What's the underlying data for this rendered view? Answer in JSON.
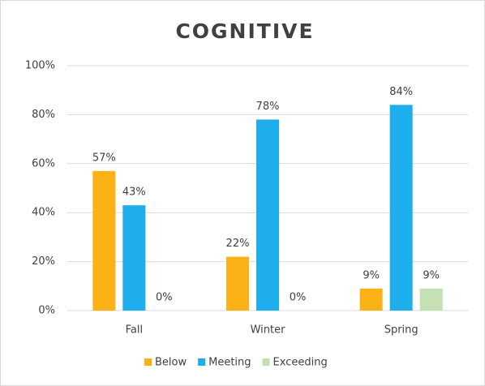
{
  "chart_data": {
    "type": "bar",
    "title": "COGNITIVE",
    "categories": [
      "Fall",
      "Winter",
      "Spring"
    ],
    "series": [
      {
        "name": "Below",
        "color": "#FBB216",
        "values": [
          57,
          22,
          9
        ],
        "value_labels": [
          "57%",
          "22%",
          "9%"
        ]
      },
      {
        "name": "Meeting",
        "color": "#1EAEEB",
        "values": [
          43,
          78,
          84
        ],
        "value_labels": [
          "43%",
          "78%",
          "84%"
        ]
      },
      {
        "name": "Exceeding",
        "color": "#C5E0B4",
        "values": [
          0,
          0,
          9
        ],
        "value_labels": [
          "0%",
          "0%",
          "9%"
        ]
      }
    ],
    "ylim": [
      0,
      100
    ],
    "yticks": [
      {
        "value": 0,
        "label": "0%"
      },
      {
        "value": 20,
        "label": "20%"
      },
      {
        "value": 40,
        "label": "40%"
      },
      {
        "value": 60,
        "label": "60%"
      },
      {
        "value": 80,
        "label": "80%"
      },
      {
        "value": 100,
        "label": "100%"
      }
    ],
    "grid": true,
    "legend": "bottom"
  }
}
